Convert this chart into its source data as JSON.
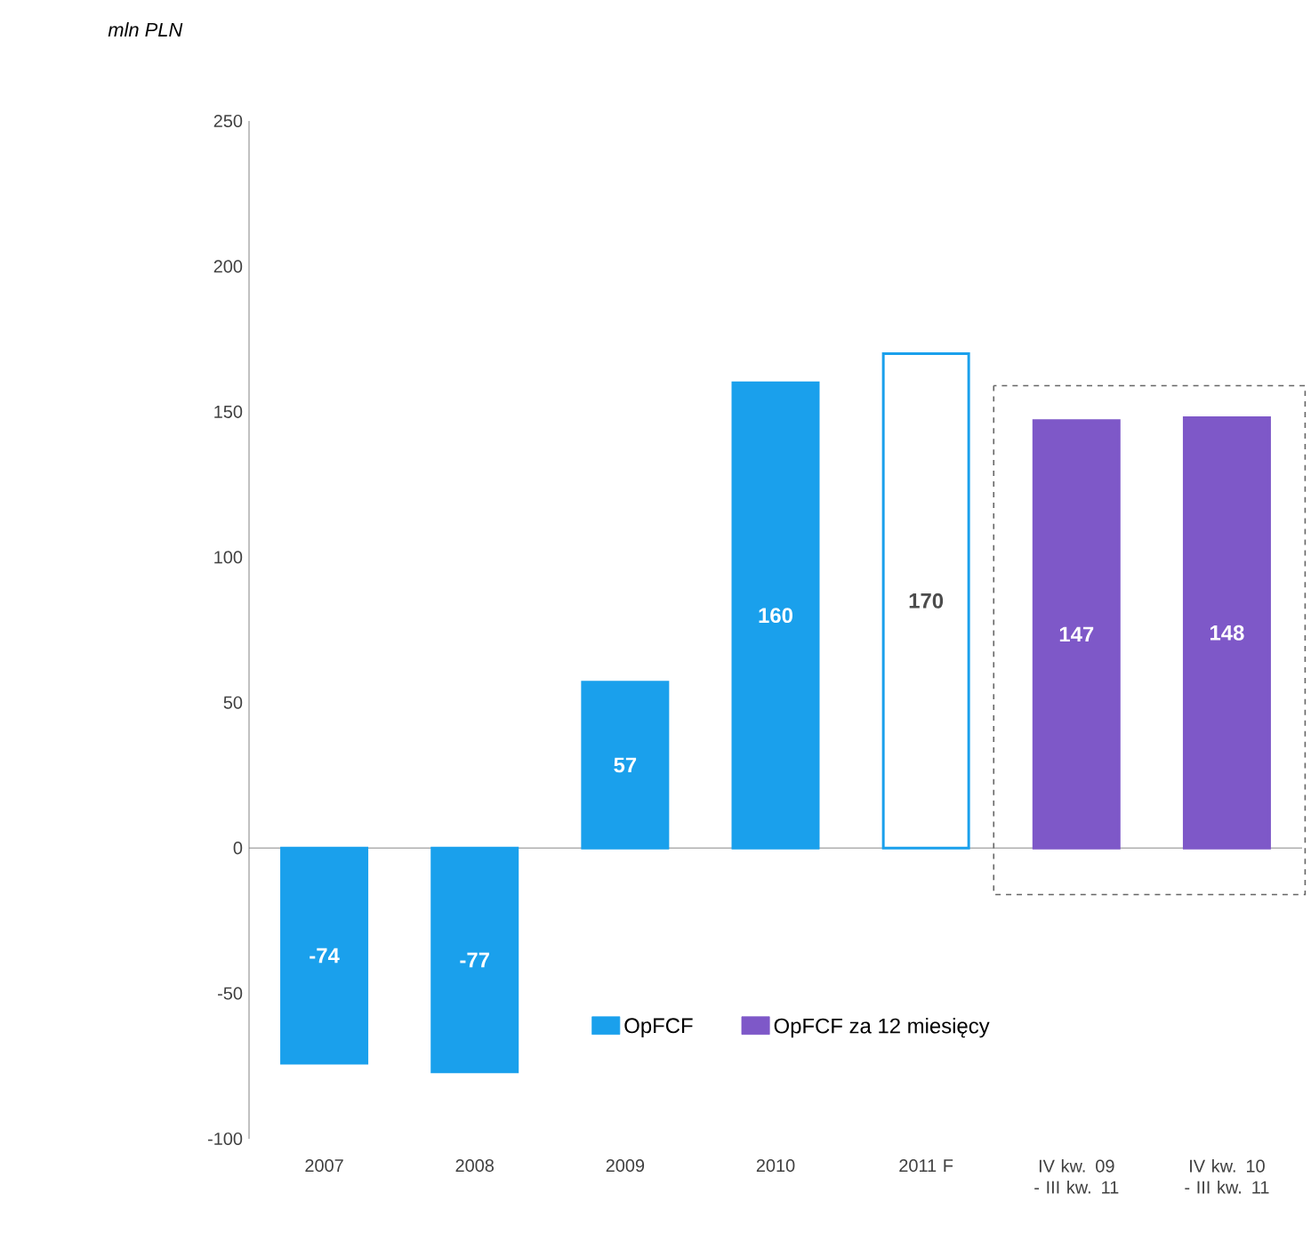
{
  "chart_data": {
    "type": "bar",
    "ylabel": "mln PLN",
    "categories": [
      "2007",
      "2008",
      "2009",
      "2010",
      "2011 F",
      "IV kw. 09 - III kw. 11",
      "IV kw. 10 - III kw. 11"
    ],
    "series": [
      {
        "name": "OpFCF",
        "color": "#1aa0ec",
        "colors": [
          "#1aa0ec",
          "#1aa0ec",
          "#1aa0ec",
          "#1aa0ec",
          "#ffffff",
          null,
          null
        ],
        "values": [
          -74,
          -77,
          57,
          160,
          170,
          null,
          null
        ]
      },
      {
        "name": "OpFCF za 12 miesięcy",
        "color": "#7e58c8",
        "values": [
          null,
          null,
          null,
          null,
          null,
          147,
          148
        ]
      }
    ],
    "ylim": [
      -100,
      250
    ],
    "yticks": [
      -100,
      -50,
      0,
      50,
      100,
      150,
      200,
      250
    ],
    "data_labels": true,
    "legend": "bottom right"
  }
}
